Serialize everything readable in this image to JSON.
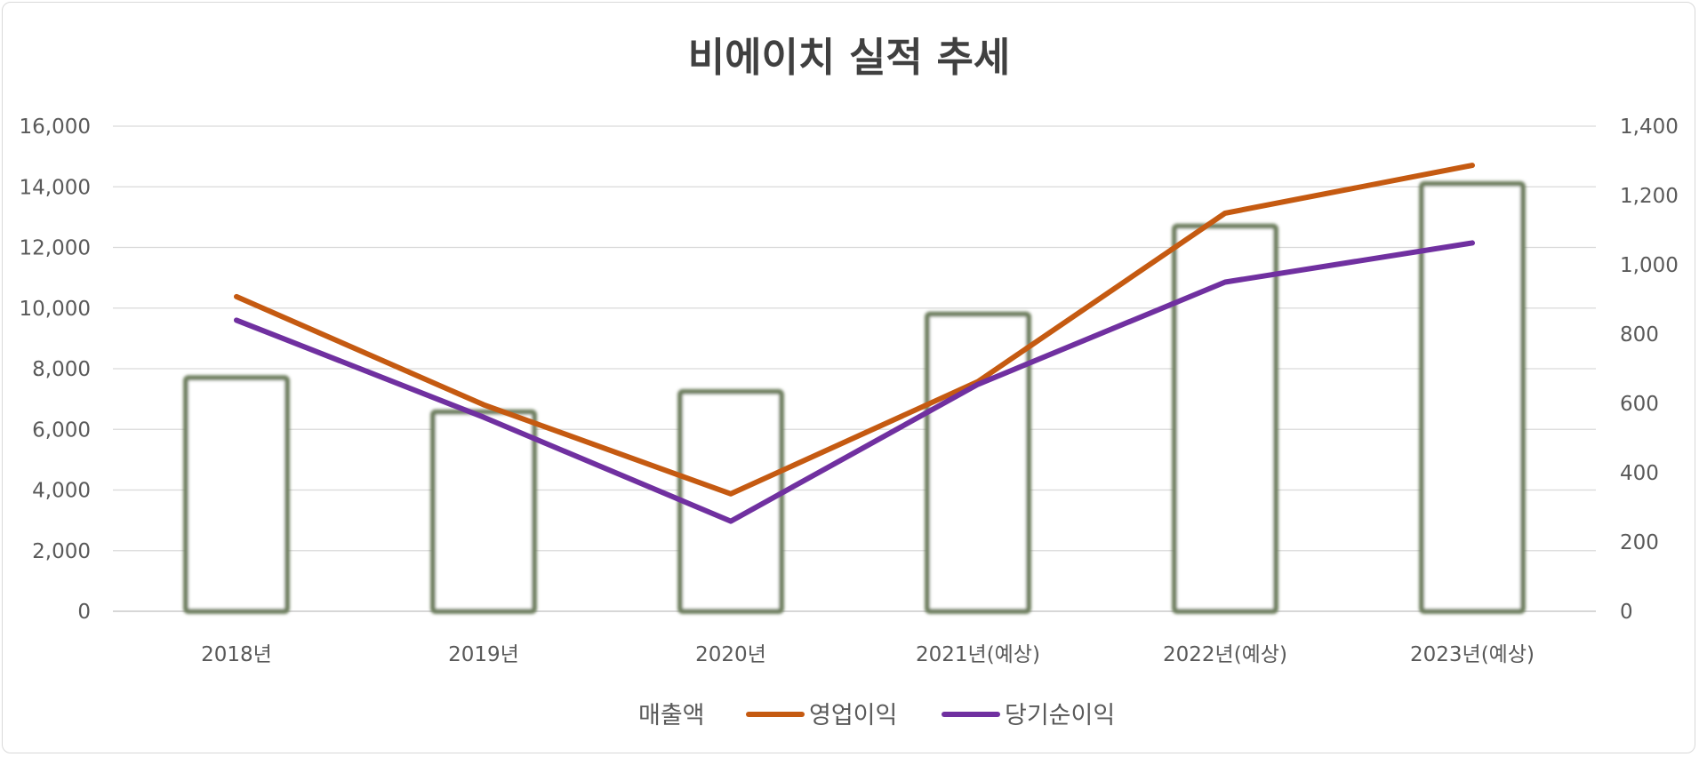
{
  "chart_data": {
    "type": "bar",
    "title": "비에이치 실적 추세",
    "categories": [
      "2018년",
      "2019년",
      "2020년",
      "2021년(예상)",
      "2022년(예상)",
      "2023년(예상)"
    ],
    "y_left": {
      "min": 0,
      "max": 16000,
      "step": 2000,
      "ticks": [
        "0",
        "2,000",
        "4,000",
        "6,000",
        "8,000",
        "10,000",
        "12,000",
        "14,000",
        "16,000"
      ]
    },
    "y_right": {
      "min": 0,
      "max": 1400,
      "step": 200,
      "ticks": [
        "0",
        "200",
        "400",
        "600",
        "800",
        "1,000",
        "1,200",
        "1,400"
      ]
    },
    "series": [
      {
        "name": "매출액",
        "type": "bar",
        "axis": "left",
        "values": [
          7700,
          6570,
          7240,
          9800,
          12700,
          14100
        ],
        "color": "#6e7f5f"
      },
      {
        "name": "영업이익",
        "type": "line",
        "axis": "right",
        "values": [
          908,
          596,
          339,
          663,
          1149,
          1287
        ],
        "color": "#c55a11"
      },
      {
        "name": "당기순이익",
        "type": "line",
        "axis": "right",
        "values": [
          840,
          560,
          260,
          655,
          950,
          1063
        ],
        "color": "#7030a0"
      }
    ],
    "grid": true,
    "legend_position": "bottom"
  }
}
